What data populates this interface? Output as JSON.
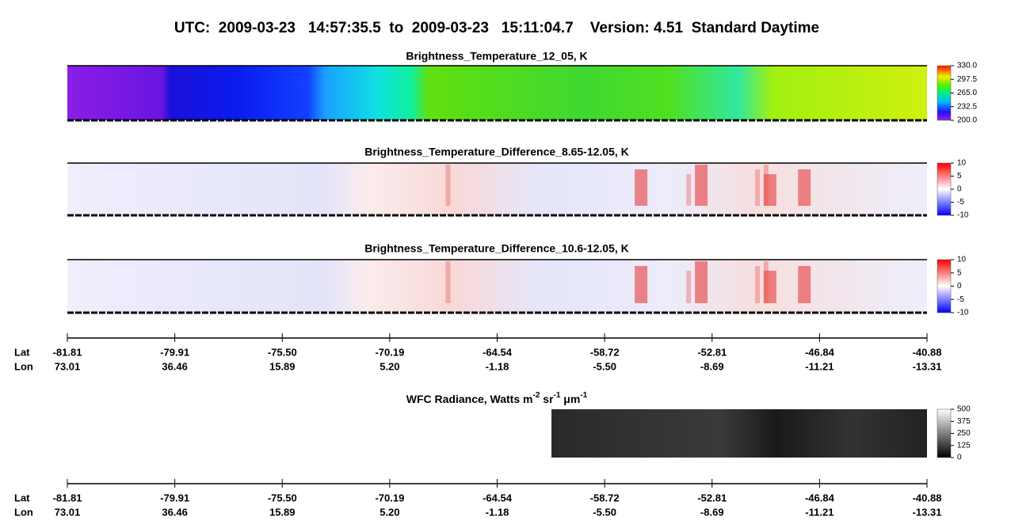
{
  "title": "UTC:  2009-03-23   14:57:35.5  to  2009-03-23   15:11:04.7    Version: 4.51  Standard Daytime",
  "chart_data": [
    {
      "type": "heatmap",
      "title": "Brightness_Temperature_12_05, K",
      "zlim": [
        200,
        330
      ],
      "zticks": [
        {
          "value": 330,
          "label": "330.0"
        },
        297.5,
        {
          "value": 265,
          "label": "265.0"
        },
        232.5,
        {
          "value": 200,
          "label": "200.0"
        }
      ]
    },
    {
      "type": "heatmap",
      "title": "Brightness_Temperature_Difference_8.65-12.05, K",
      "zlim": [
        -10,
        10
      ],
      "zticks": [
        10,
        5,
        0,
        -5,
        -10
      ]
    },
    {
      "type": "heatmap",
      "title": "Brightness_Temperature_Difference_10.6-12.05, K",
      "zlim": [
        -10,
        10
      ],
      "zticks": [
        10,
        5,
        0,
        -5,
        -10
      ]
    },
    {
      "type": "heatmap",
      "title_parts": [
        "WFC Radiance, Watts m",
        "-2",
        " sr",
        "-1",
        " μm",
        "-1"
      ],
      "zlim": [
        0,
        500
      ],
      "zticks": [
        500,
        375,
        250,
        125,
        0
      ]
    }
  ],
  "geo_axis": {
    "row_labels": [
      "Lat",
      "Lon"
    ],
    "lat": [
      "-81.81",
      "-79.91",
      "-75.50",
      "-70.19",
      "-64.54",
      "-58.72",
      "-52.81",
      "-46.84",
      "-40.88"
    ],
    "lon": [
      "73.01",
      "36.46",
      "15.89",
      "5.20",
      "-1.18",
      "-5.50",
      "-8.69",
      "-11.21",
      "-13.31"
    ]
  }
}
